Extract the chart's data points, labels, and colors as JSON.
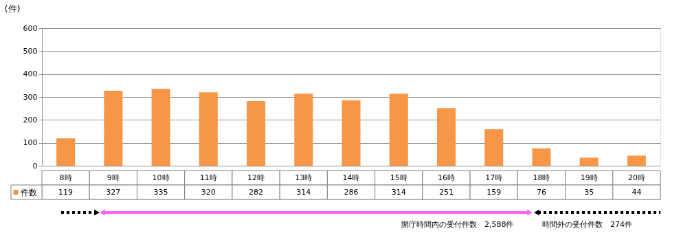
{
  "chart_data": {
    "type": "bar",
    "ylabel": "(件)",
    "categories": [
      "8時",
      "9時",
      "10時",
      "11時",
      "12時",
      "13時",
      "14時",
      "15時",
      "16時",
      "17時",
      "18時",
      "19時",
      "20時"
    ],
    "series": [
      {
        "name": "件数",
        "color": "#f79646",
        "values": [
          119,
          327,
          335,
          320,
          282,
          314,
          286,
          314,
          251,
          159,
          76,
          35,
          44
        ]
      }
    ],
    "ylim": [
      0,
      600
    ],
    "yticks": [
      0,
      100,
      200,
      300,
      400,
      500,
      600
    ],
    "grid": "y",
    "data_labels": true,
    "legend": "bottom left",
    "annotations": [
      "開庁時間内の受付件数　2,588件",
      "時間外の受付件数　274件"
    ]
  }
}
